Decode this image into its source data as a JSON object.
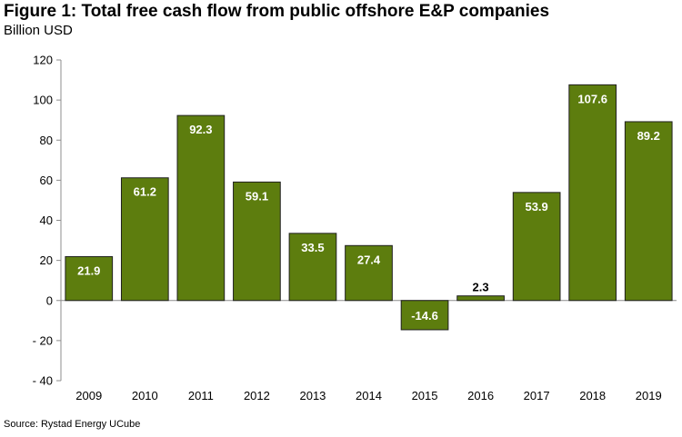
{
  "chart_data": {
    "type": "bar",
    "title": "Figure 1: Total free cash flow from public offshore E&P companies",
    "subtitle": "Billion USD",
    "source": "Source: Rystad Energy UCube",
    "categories": [
      "2009",
      "2010",
      "2011",
      "2012",
      "2013",
      "2014",
      "2015",
      "2016",
      "2017",
      "2018",
      "2019"
    ],
    "values": [
      21.9,
      61.2,
      92.3,
      59.1,
      33.5,
      27.4,
      -14.6,
      2.3,
      53.9,
      107.6,
      89.2
    ],
    "value_labels": [
      "21.9",
      "61.2",
      "92.3",
      "59.1",
      "33.5",
      "27.4",
      "-14.6",
      "2.3",
      "53.9",
      "107.6",
      "89.2"
    ],
    "ylim": [
      -40,
      120
    ],
    "yticks": [
      120,
      100,
      80,
      60,
      40,
      20,
      0,
      -20,
      -40
    ],
    "ytick_labels": [
      "120",
      "100",
      "80",
      "60",
      "40",
      "20",
      "0",
      "- 20",
      "- 40"
    ],
    "xlabel": "",
    "ylabel": "",
    "grid": false,
    "legend": "none",
    "bar_color": "#5d7d0e",
    "bar_edge_color": "#1f1f1f",
    "label_color_inside": "#ffffff",
    "label_color_outside": "#000000"
  }
}
